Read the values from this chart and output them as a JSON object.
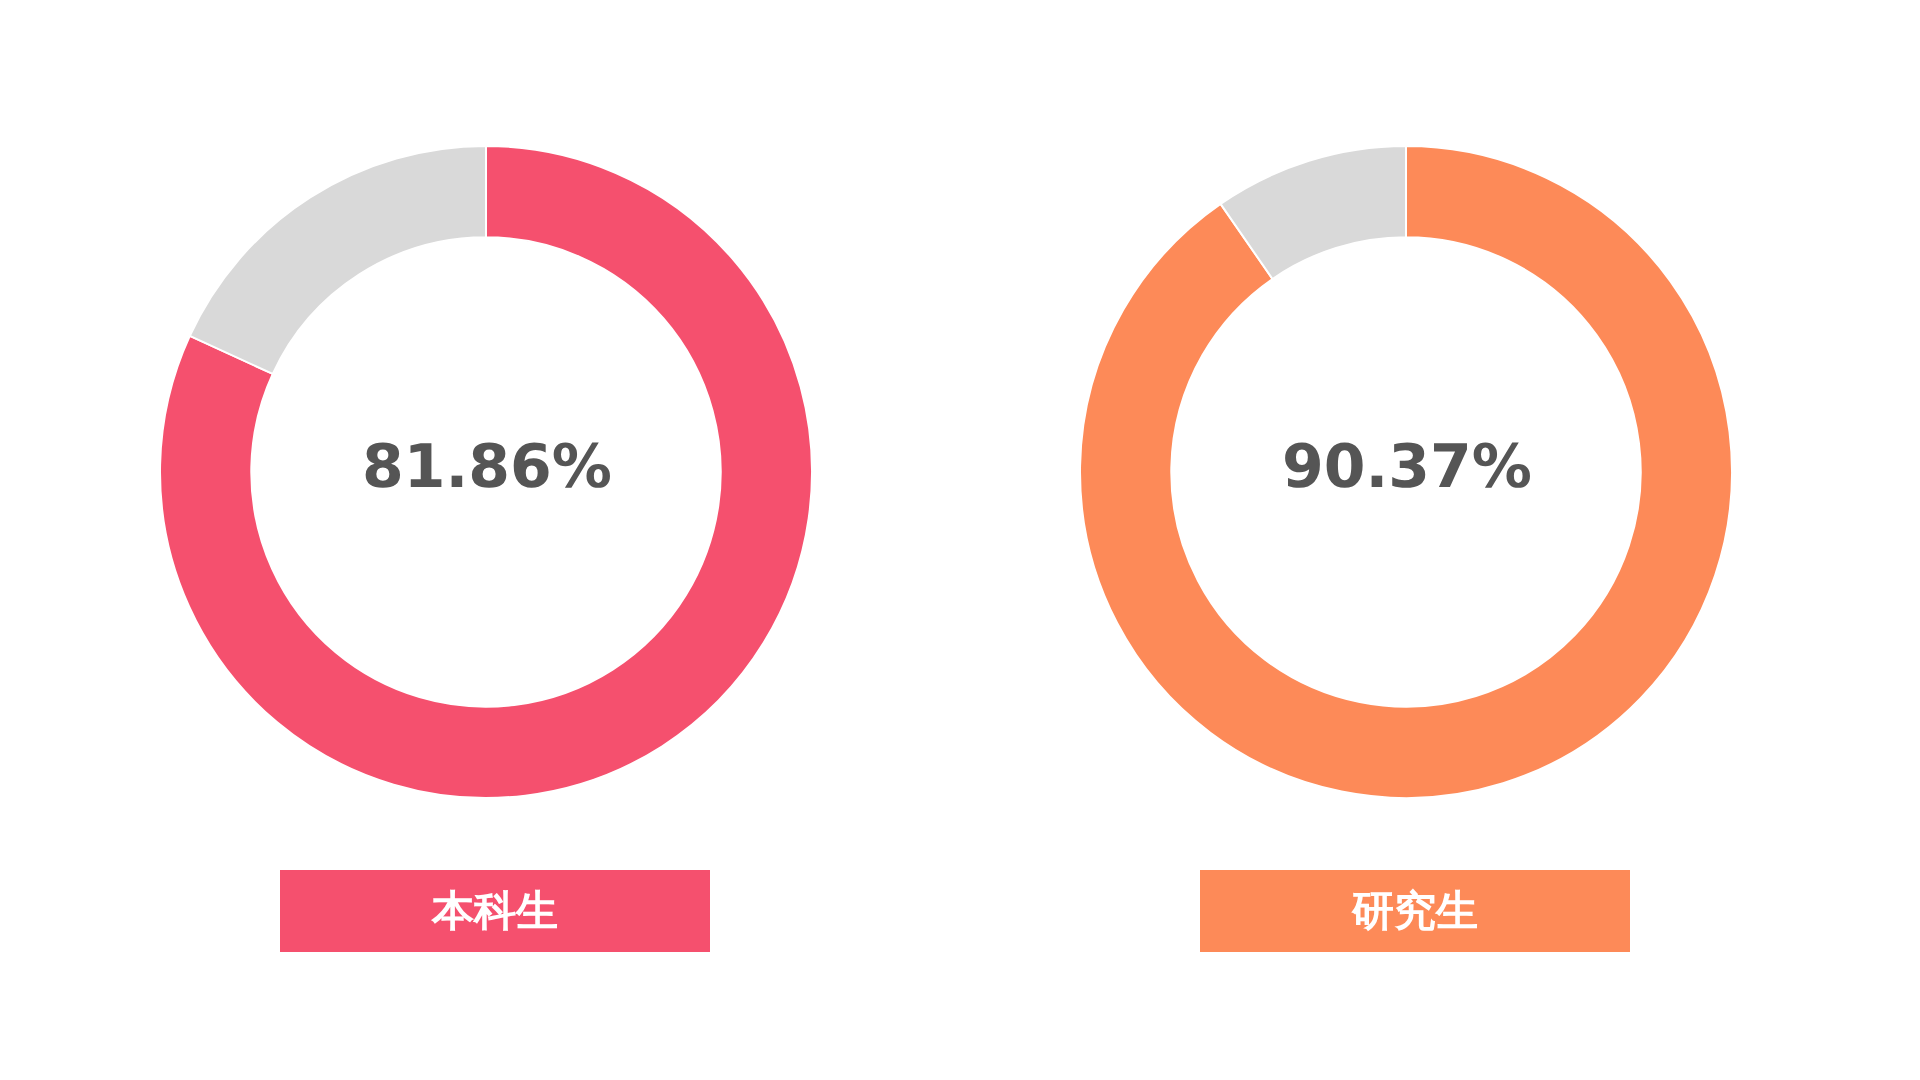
{
  "chart_data": [
    {
      "type": "donut",
      "title": "本科生",
      "categories": [
        null,
        null
      ],
      "values": [
        81.86,
        18.14
      ],
      "colors": [
        "#f5506e",
        "#d9d9d9"
      ],
      "annotations": [
        "81.86%"
      ]
    },
    {
      "type": "donut",
      "title": "研究生",
      "categories": [
        null,
        null
      ],
      "values": [
        90.37,
        9.63
      ],
      "colors": [
        "#fd8a58",
        "#d9d9d9"
      ],
      "annotations": [
        "90.37%"
      ]
    }
  ]
}
